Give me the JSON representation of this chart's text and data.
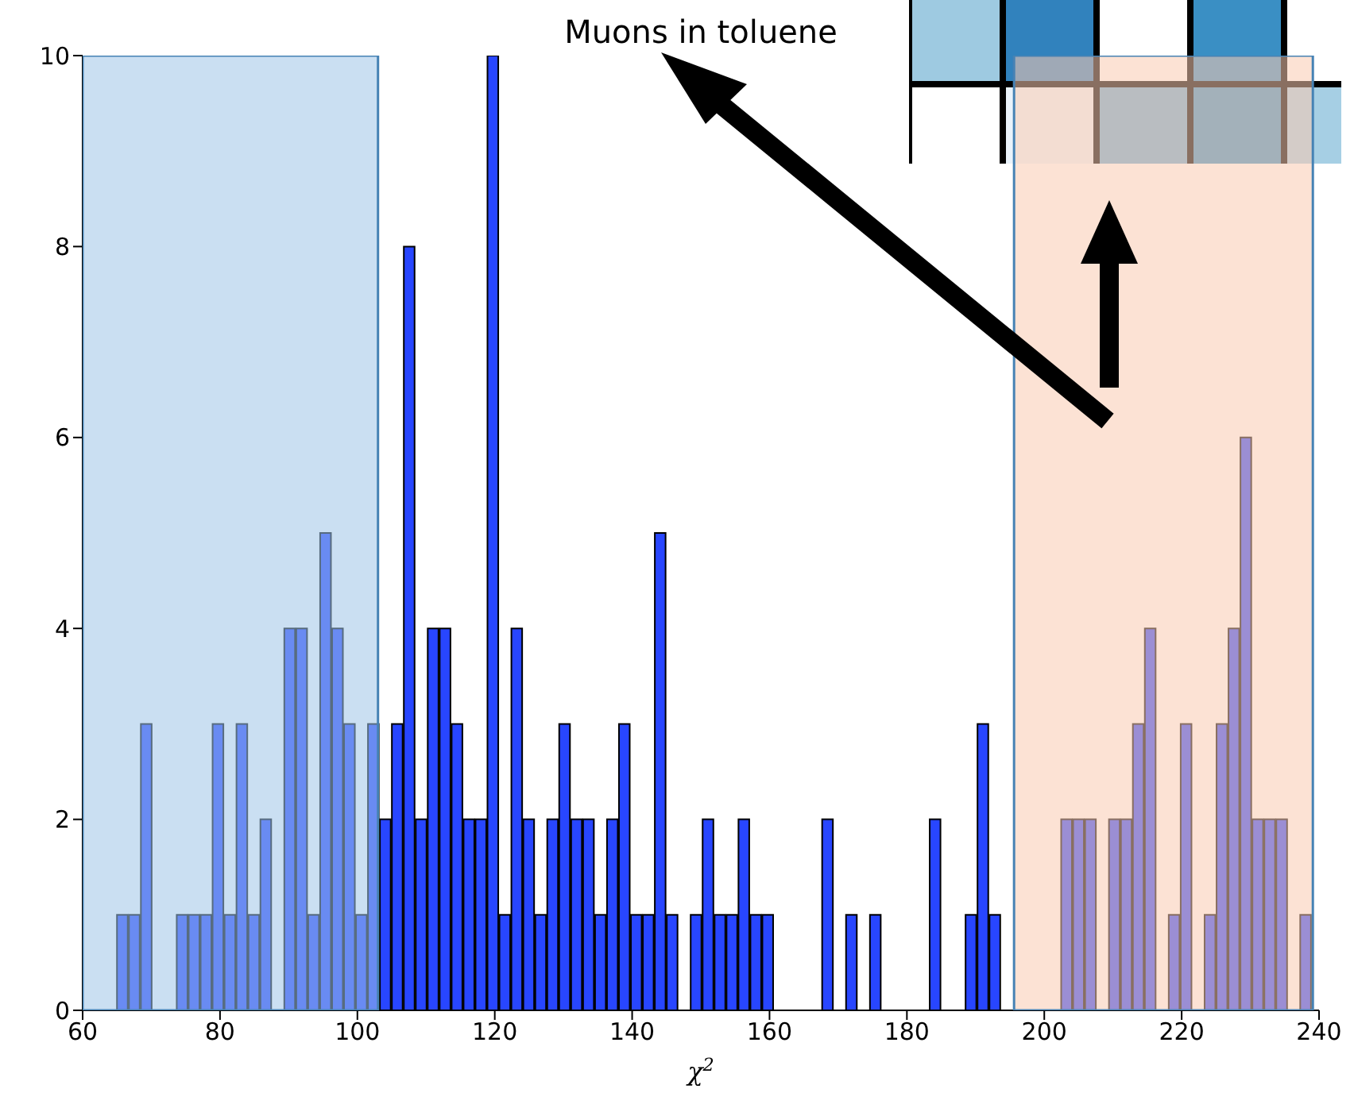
{
  "chart_data": {
    "type": "histogram",
    "title": "Muons in toluene",
    "xlabel": "χ$^{2}$",
    "bins": [
      65,
      66.74,
      68.48,
      70.22,
      71.96,
      73.7,
      75.44,
      77.18,
      78.92,
      80.66,
      82.4,
      84.14,
      85.88,
      87.62,
      89.36,
      91.1,
      92.84,
      94.58,
      96.32,
      98.06,
      99.8,
      101.54,
      103.28,
      105.02,
      106.76,
      108.5,
      110.24,
      111.98,
      113.72,
      115.46,
      117.2,
      118.94,
      120.68,
      122.42,
      124.16,
      125.9,
      127.64,
      129.38,
      131.12,
      132.86,
      134.6,
      136.34,
      138.08,
      139.82,
      141.56,
      143.3,
      145.04,
      146.78,
      148.52,
      150.26,
      152,
      153.74,
      155.48,
      157.22,
      158.96,
      160.7,
      162.44,
      164.18,
      165.92,
      167.66,
      169.4,
      171.14,
      172.88,
      174.62,
      176.36,
      178.1,
      179.84,
      181.58,
      183.32,
      185.06,
      186.8,
      188.54,
      190.28,
      192.02,
      193.76,
      195.5,
      197.24,
      198.98,
      200.72,
      202.46,
      204.2,
      205.94,
      207.68,
      209.42,
      211.16,
      212.9,
      214.64,
      216.38,
      218.12,
      219.86,
      221.6,
      223.34,
      225.08,
      226.82,
      228.56,
      230.3,
      232.04,
      233.78,
      235.52,
      237.26,
      239
    ],
    "values": [
      1,
      1,
      3,
      0,
      0,
      1,
      1,
      1,
      3,
      1,
      3,
      1,
      2,
      0,
      4,
      4,
      1,
      5,
      4,
      3,
      1,
      3,
      2,
      3,
      8,
      2,
      4,
      4,
      3,
      2,
      2,
      10,
      1,
      4,
      2,
      1,
      2,
      3,
      2,
      2,
      1,
      2,
      3,
      1,
      1,
      5,
      1,
      0,
      1,
      2,
      1,
      1,
      2,
      1,
      1,
      0,
      0,
      0,
      0,
      2,
      0,
      1,
      0,
      1,
      0,
      0,
      0,
      0,
      2,
      0,
      0,
      1,
      3,
      1,
      0,
      0,
      0,
      0,
      0,
      2,
      2,
      2,
      0,
      2,
      2,
      3,
      4,
      0,
      1,
      3,
      0,
      1,
      3,
      4,
      6,
      2,
      2,
      2,
      0,
      1
    ],
    "color": "#2846ff",
    "xlim": [
      60,
      240
    ],
    "ylim": [
      0,
      10
    ],
    "xticks": [
      60,
      80,
      100,
      120,
      140,
      160,
      180,
      200,
      220,
      240
    ],
    "yticks": [
      0,
      2,
      4,
      6,
      8,
      10
    ],
    "bands": [
      {
        "axis": "x",
        "from": 60,
        "to": 103,
        "color": "#9fc5e8"
      },
      {
        "axis": "x",
        "from": 195.6,
        "to": 239.1,
        "color": "#facbb0"
      }
    ]
  }
}
